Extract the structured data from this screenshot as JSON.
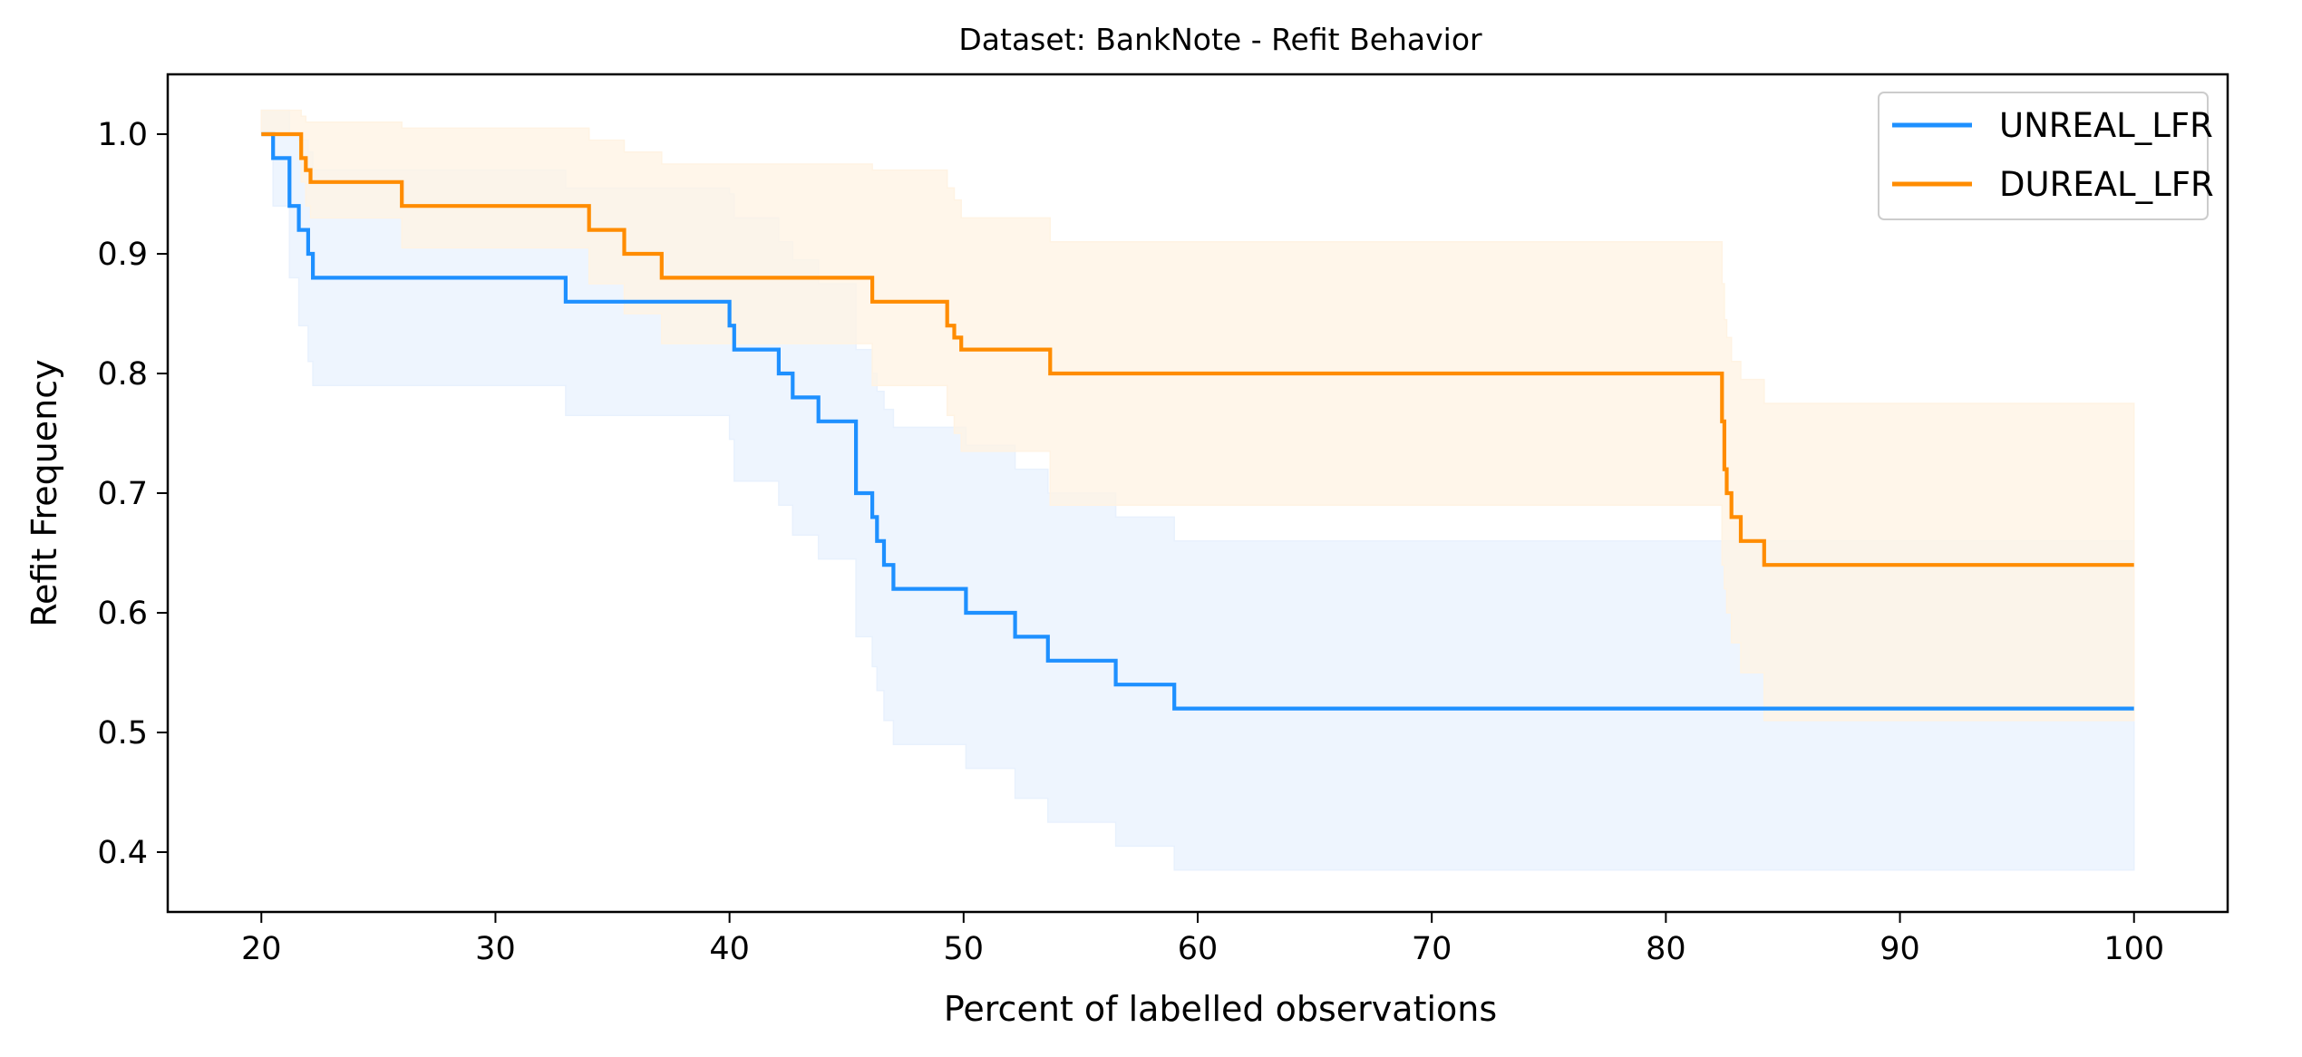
{
  "chart_data": {
    "type": "line",
    "title": "Dataset: BankNote - Refit Behavior",
    "xlabel": "Percent of labelled observations",
    "ylabel": "Refit Frequency",
    "xlim": [
      16,
      104
    ],
    "ylim": [
      0.35,
      1.05
    ],
    "xticks": [
      20,
      30,
      40,
      50,
      60,
      70,
      80,
      90,
      100
    ],
    "yticks": [
      0.4,
      0.5,
      0.6,
      0.7,
      0.8,
      0.9,
      1.0
    ],
    "xtick_labels": [
      "20",
      "30",
      "40",
      "50",
      "60",
      "70",
      "80",
      "90",
      "100"
    ],
    "ytick_labels": [
      "0.4",
      "0.5",
      "0.6",
      "0.7",
      "0.8",
      "0.9",
      "1.0"
    ],
    "grid": false,
    "legend_position": "top-right",
    "series": [
      {
        "name": "UNREAL_LFR",
        "color": "#1e90ff",
        "style": "step",
        "x": [
          20,
          20.5,
          21.2,
          21.6,
          22.0,
          22.2,
          33.0,
          40.0,
          40.2,
          42.1,
          42.7,
          43.8,
          45.4,
          46.1,
          46.3,
          46.6,
          47.0,
          50.1,
          52.2,
          53.6,
          56.5,
          59.0,
          100
        ],
        "y": [
          1.0,
          0.98,
          0.94,
          0.92,
          0.9,
          0.88,
          0.86,
          0.84,
          0.82,
          0.8,
          0.78,
          0.76,
          0.7,
          0.68,
          0.66,
          0.64,
          0.62,
          0.6,
          0.58,
          0.56,
          0.54,
          0.52,
          0.52
        ],
        "band_lower": [
          1.0,
          0.94,
          0.88,
          0.84,
          0.81,
          0.79,
          0.765,
          0.745,
          0.71,
          0.69,
          0.665,
          0.645,
          0.58,
          0.555,
          0.535,
          0.51,
          0.49,
          0.47,
          0.445,
          0.425,
          0.405,
          0.385,
          0.385
        ],
        "band_upper": [
          1.02,
          1.02,
          1.0,
          0.995,
          0.985,
          0.97,
          0.955,
          0.95,
          0.93,
          0.91,
          0.895,
          0.875,
          0.82,
          0.8,
          0.785,
          0.77,
          0.755,
          0.74,
          0.72,
          0.7,
          0.68,
          0.66,
          0.66
        ],
        "band_color": "#e8f1fd"
      },
      {
        "name": "DUREAL_LFR",
        "color": "#ff8c00",
        "style": "step",
        "x": [
          20,
          21.7,
          21.9,
          22.1,
          26.0,
          34.0,
          35.5,
          37.1,
          46.1,
          49.3,
          49.6,
          49.9,
          53.7,
          82.4,
          82.5,
          82.6,
          82.8,
          83.2,
          84.2,
          100
        ],
        "y": [
          1.0,
          0.98,
          0.97,
          0.96,
          0.94,
          0.92,
          0.9,
          0.88,
          0.86,
          0.84,
          0.83,
          0.82,
          0.8,
          0.76,
          0.72,
          0.7,
          0.68,
          0.66,
          0.64,
          0.64
        ],
        "band_lower": [
          1.0,
          0.96,
          0.94,
          0.93,
          0.905,
          0.875,
          0.85,
          0.825,
          0.79,
          0.765,
          0.75,
          0.735,
          0.69,
          0.64,
          0.62,
          0.6,
          0.575,
          0.55,
          0.51,
          0.51
        ],
        "band_upper": [
          1.02,
          1.015,
          1.01,
          1.01,
          1.005,
          0.995,
          0.985,
          0.975,
          0.97,
          0.955,
          0.945,
          0.93,
          0.91,
          0.875,
          0.845,
          0.83,
          0.81,
          0.795,
          0.775,
          0.775
        ],
        "band_color": "#fff3e3"
      }
    ]
  }
}
